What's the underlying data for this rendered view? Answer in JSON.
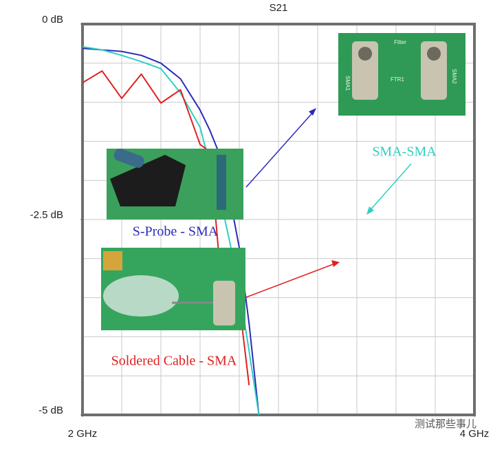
{
  "chart_data": {
    "type": "line",
    "title": "S21",
    "x": [
      2.0,
      2.1,
      2.2,
      2.3,
      2.4,
      2.5,
      2.6,
      2.65,
      2.7,
      2.75,
      2.8,
      2.85,
      2.9
    ],
    "xlim": [
      2,
      4
    ],
    "xticks": [
      {
        "value": 2,
        "label": "2 GHz"
      },
      {
        "value": 4,
        "label": "4 GHz"
      }
    ],
    "ylim": [
      -5,
      0
    ],
    "yticks": [
      {
        "value": 0,
        "label": "0 dB"
      },
      {
        "value": -2.5,
        "label": "-2.5 dB"
      },
      {
        "value": -5,
        "label": "-5 dB"
      }
    ],
    "grid": true,
    "grid_divisions": 10,
    "series": [
      {
        "name": "S-Probe - SMA",
        "color": "#2b2bb8",
        "values": [
          -0.31,
          -0.33,
          -0.35,
          -0.4,
          -0.5,
          -0.7,
          -1.1,
          -1.36,
          -1.67,
          -2.2,
          -2.86,
          -3.83,
          -5.0
        ]
      },
      {
        "name": "SMA-SMA",
        "color": "#2ecfc0",
        "values": [
          -0.29,
          -0.33,
          -0.4,
          -0.48,
          -0.57,
          -0.88,
          -1.32,
          -1.8,
          -2.2,
          -2.77,
          -3.39,
          -4.18,
          -5.0
        ]
      },
      {
        "name": "Soldered Cable - SMA",
        "color": "#e02020",
        "values": [
          -0.75,
          -0.6,
          -0.95,
          -0.64,
          -1.01,
          -0.84,
          -1.54,
          -1.63,
          -3.08,
          -3.26,
          -3.57,
          -4.62,
          null
        ]
      }
    ],
    "photo_labels": [
      "Filter",
      "SMA1",
      "SMA2",
      "FTR1"
    ],
    "watermark": "测试那些事儿"
  }
}
